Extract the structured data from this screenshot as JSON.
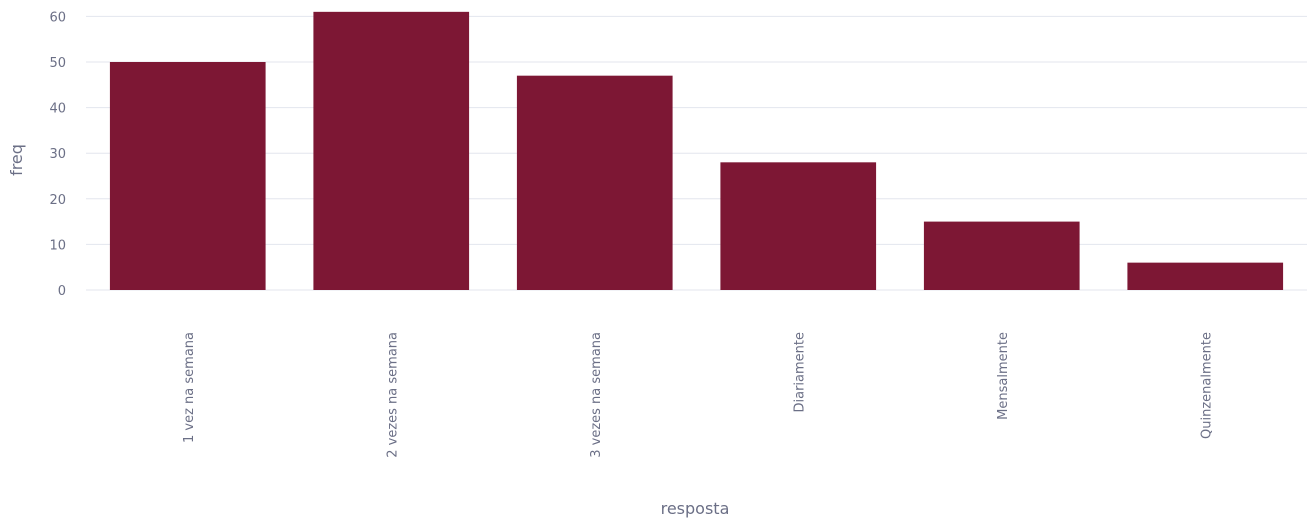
{
  "chart_data": {
    "type": "bar",
    "categories": [
      "1 vez na semana",
      "2 vezes na semana",
      "3 vezes na semana",
      "Diariamente",
      "Mensalmente",
      "Quinzenalmente"
    ],
    "values": [
      50,
      61,
      47,
      28,
      15,
      6
    ],
    "xlabel": "resposta",
    "ylabel": "freq",
    "ylim": [
      0,
      60
    ],
    "yticks": [
      0,
      10,
      20,
      30,
      40,
      50,
      60
    ],
    "grid": true,
    "bar_color": "#7d1734"
  }
}
